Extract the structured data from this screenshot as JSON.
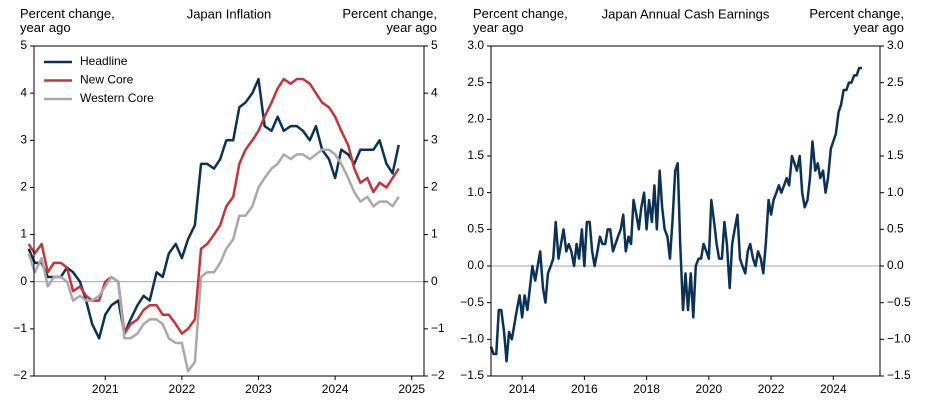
{
  "chart_data": [
    {
      "type": "line",
      "title": "Japan Inflation",
      "y_label": "Percent change,\nyear ago",
      "y2_label": "Percent change,\nyear ago",
      "x": [
        2020.0,
        2020.08,
        2020.17,
        2020.25,
        2020.33,
        2020.42,
        2020.5,
        2020.58,
        2020.67,
        2020.75,
        2020.83,
        2020.92,
        2021.0,
        2021.08,
        2021.17,
        2021.25,
        2021.33,
        2021.42,
        2021.5,
        2021.58,
        2021.67,
        2021.75,
        2021.83,
        2021.92,
        2022.0,
        2022.08,
        2022.17,
        2022.25,
        2022.33,
        2022.42,
        2022.5,
        2022.58,
        2022.67,
        2022.75,
        2022.83,
        2022.92,
        2023.0,
        2023.08,
        2023.17,
        2023.25,
        2023.33,
        2023.42,
        2023.5,
        2023.58,
        2023.67,
        2023.75,
        2023.83,
        2023.92,
        2024.0,
        2024.08,
        2024.17,
        2024.25,
        2024.33,
        2024.42,
        2024.5,
        2024.58,
        2024.67,
        2024.75,
        2024.83
      ],
      "series": [
        {
          "name": "Headline",
          "color": "#0b3256",
          "values": [
            0.7,
            0.4,
            0.4,
            0.1,
            0.1,
            0.1,
            0.3,
            0.2,
            0.0,
            -0.4,
            -0.9,
            -1.2,
            -0.7,
            -0.5,
            -0.4,
            -1.1,
            -0.8,
            -0.5,
            -0.3,
            -0.4,
            0.2,
            0.1,
            0.6,
            0.8,
            0.5,
            0.9,
            1.2,
            2.5,
            2.5,
            2.4,
            2.6,
            3.0,
            3.0,
            3.7,
            3.8,
            4.0,
            4.3,
            3.3,
            3.2,
            3.5,
            3.2,
            3.3,
            3.3,
            3.2,
            3.0,
            3.3,
            2.8,
            2.6,
            2.2,
            2.8,
            2.7,
            2.5,
            2.8,
            2.8,
            2.8,
            3.0,
            2.5,
            2.3,
            2.9
          ]
        },
        {
          "name": "New Core",
          "color": "#c0363a",
          "values": [
            0.8,
            0.6,
            0.8,
            0.2,
            0.4,
            0.4,
            0.3,
            -0.2,
            -0.1,
            -0.3,
            -0.4,
            -0.4,
            0.0,
            0.1,
            0.0,
            -1.1,
            -0.9,
            -0.8,
            -0.6,
            -0.5,
            -0.5,
            -0.7,
            -0.7,
            -0.9,
            -1.1,
            -1.0,
            -0.8,
            0.7,
            0.8,
            1.0,
            1.2,
            1.6,
            1.8,
            2.5,
            2.8,
            3.0,
            3.2,
            3.5,
            3.8,
            4.1,
            4.3,
            4.2,
            4.3,
            4.3,
            4.2,
            4.0,
            3.8,
            3.7,
            3.5,
            3.2,
            2.9,
            2.4,
            2.1,
            2.2,
            1.9,
            2.1,
            2.0,
            2.2,
            2.4
          ]
        },
        {
          "name": "Western Core",
          "color": "#a9a9a9",
          "values": [
            0.6,
            0.2,
            0.5,
            -0.1,
            0.1,
            0.1,
            0.0,
            -0.4,
            -0.3,
            -0.4,
            -0.4,
            -0.3,
            -0.1,
            0.1,
            0.0,
            -1.2,
            -1.2,
            -1.1,
            -0.9,
            -0.8,
            -0.8,
            -0.9,
            -1.2,
            -1.3,
            -1.3,
            -1.9,
            -1.7,
            0.1,
            0.2,
            0.2,
            0.4,
            0.7,
            0.9,
            1.4,
            1.4,
            1.6,
            2.0,
            2.2,
            2.4,
            2.5,
            2.7,
            2.6,
            2.7,
            2.7,
            2.6,
            2.7,
            2.8,
            2.8,
            2.7,
            2.5,
            2.2,
            1.9,
            1.7,
            1.8,
            1.6,
            1.7,
            1.7,
            1.6,
            1.8
          ]
        }
      ],
      "xlim": [
        2020.07,
        2025.16
      ],
      "xticks": [
        2021,
        2022,
        2023,
        2024,
        2025
      ],
      "ylim": [
        -2,
        5
      ],
      "yticks": [
        {
          "value": -2,
          "label": "−2"
        },
        {
          "value": -1,
          "label": "−1"
        },
        0,
        1,
        2,
        3,
        4,
        5
      ],
      "y2lim": [
        -2,
        5
      ],
      "y2ticks": [
        {
          "value": -2,
          "label": "−2"
        },
        {
          "value": -1,
          "label": "−1"
        },
        0,
        1,
        2,
        3,
        4,
        5
      ],
      "legend": "upper left"
    },
    {
      "type": "line",
      "title": "Japan Annual Cash Earnings",
      "y_label": "Percent change,\nyear ago",
      "y2_label": "Percent change,\nyear ago",
      "x": [
        2013.0,
        2013.08,
        2013.17,
        2013.25,
        2013.33,
        2013.42,
        2013.5,
        2013.58,
        2013.67,
        2013.75,
        2013.83,
        2013.92,
        2014.0,
        2014.08,
        2014.17,
        2014.25,
        2014.33,
        2014.42,
        2014.5,
        2014.58,
        2014.67,
        2014.75,
        2014.83,
        2014.92,
        2015.0,
        2015.08,
        2015.17,
        2015.25,
        2015.33,
        2015.42,
        2015.5,
        2015.58,
        2015.67,
        2015.75,
        2015.83,
        2015.92,
        2016.0,
        2016.08,
        2016.17,
        2016.25,
        2016.33,
        2016.42,
        2016.5,
        2016.58,
        2016.67,
        2016.75,
        2016.83,
        2016.92,
        2017.0,
        2017.08,
        2017.17,
        2017.25,
        2017.33,
        2017.42,
        2017.5,
        2017.58,
        2017.67,
        2017.75,
        2017.83,
        2017.92,
        2018.0,
        2018.08,
        2018.17,
        2018.25,
        2018.33,
        2018.42,
        2018.5,
        2018.58,
        2018.67,
        2018.75,
        2018.83,
        2018.92,
        2019.0,
        2019.08,
        2019.17,
        2019.25,
        2019.33,
        2019.42,
        2019.5,
        2019.58,
        2019.67,
        2019.75,
        2019.83,
        2019.92,
        2020.0,
        2020.08,
        2020.17,
        2020.25,
        2020.33,
        2020.42,
        2020.5,
        2020.58,
        2020.67,
        2020.75,
        2020.83,
        2020.92,
        2021.0,
        2021.08,
        2021.17,
        2021.25,
        2021.33,
        2021.42,
        2021.5,
        2021.58,
        2021.67,
        2021.75,
        2021.83,
        2021.92,
        2022.0,
        2022.08,
        2022.17,
        2022.25,
        2022.33,
        2022.42,
        2022.5,
        2022.58,
        2022.67,
        2022.75,
        2022.83,
        2022.92,
        2023.0,
        2023.08,
        2023.17,
        2023.25,
        2023.33,
        2023.42,
        2023.5,
        2023.58,
        2023.67,
        2023.75,
        2023.83,
        2023.92,
        2024.0,
        2024.08,
        2024.17,
        2024.25,
        2024.33,
        2024.42,
        2024.5,
        2024.58,
        2024.67,
        2024.75,
        2024.83,
        2024.92
      ],
      "series": [
        {
          "color": "#0b3256",
          "values": [
            -1.1,
            -1.2,
            -1.2,
            -0.6,
            -0.6,
            -0.9,
            -1.3,
            -0.9,
            -1.0,
            -0.8,
            -0.6,
            -0.4,
            -0.7,
            -0.4,
            -0.6,
            -0.3,
            0.0,
            -0.2,
            0.0,
            0.2,
            -0.3,
            -0.5,
            -0.1,
            0.0,
            0.1,
            0.6,
            0.1,
            0.3,
            0.5,
            0.2,
            0.3,
            0.2,
            0.0,
            0.3,
            0.1,
            0.5,
            0.0,
            0.6,
            0.6,
            0.2,
            0.0,
            0.2,
            0.4,
            0.3,
            0.3,
            0.5,
            0.5,
            0.2,
            0.3,
            0.4,
            0.5,
            0.7,
            0.2,
            0.4,
            0.3,
            0.9,
            0.7,
            0.5,
            0.8,
            1.0,
            0.5,
            0.9,
            0.6,
            1.1,
            0.5,
            1.3,
            0.8,
            0.5,
            0.4,
            0.1,
            0.6,
            1.3,
            1.4,
            0.3,
            -0.6,
            -0.1,
            -0.6,
            -0.1,
            -0.7,
            0.0,
            0.1,
            0.1,
            0.3,
            0.2,
            0.1,
            0.9,
            0.6,
            0.3,
            0.1,
            0.1,
            0.6,
            0.3,
            -0.3,
            0.3,
            0.5,
            0.7,
            0.1,
            0.0,
            -0.1,
            0.2,
            0.3,
            0.1,
            0.0,
            0.2,
            0.1,
            -0.1,
            0.3,
            0.9,
            0.7,
            0.9,
            1.0,
            1.1,
            1.0,
            1.1,
            1.2,
            1.1,
            1.5,
            1.4,
            1.3,
            1.5,
            1.0,
            0.8,
            0.9,
            1.2,
            1.7,
            1.3,
            1.4,
            1.2,
            1.3,
            1.0,
            1.2,
            1.6,
            1.7,
            1.8,
            2.1,
            2.2,
            2.4,
            2.4,
            2.5,
            2.5,
            2.6,
            2.6,
            2.7,
            2.7
          ]
        }
      ],
      "xlim": [
        2013.0,
        2025.5
      ],
      "xticks": [
        2014,
        2016,
        2018,
        2020,
        2022,
        2024
      ],
      "ylim": [
        -1.5,
        3.0
      ],
      "yticks": [
        {
          "value": -1.5,
          "label": "−1.5"
        },
        {
          "value": -1,
          "label": "−1.0"
        },
        {
          "value": -0.5,
          "label": "−0.5"
        },
        {
          "value": 0,
          "label": "0.0"
        },
        0.5,
        {
          "value": 1,
          "label": "1.0"
        },
        1.5,
        {
          "value": 2,
          "label": "2.0"
        },
        2.5,
        {
          "value": 3,
          "label": "3.0"
        }
      ],
      "y2lim": [
        -1.5,
        3.0
      ],
      "y2ticks": [
        {
          "value": -1.5,
          "label": "−1.5"
        },
        {
          "value": -1,
          "label": "−1.0"
        },
        {
          "value": -0.5,
          "label": "−0.5"
        },
        {
          "value": 0,
          "label": "0.0"
        },
        0.5,
        {
          "value": 1,
          "label": "1.0"
        },
        1.5,
        {
          "value": 2,
          "label": "2.0"
        },
        2.5,
        {
          "value": 3,
          "label": "3.0"
        }
      ]
    }
  ]
}
